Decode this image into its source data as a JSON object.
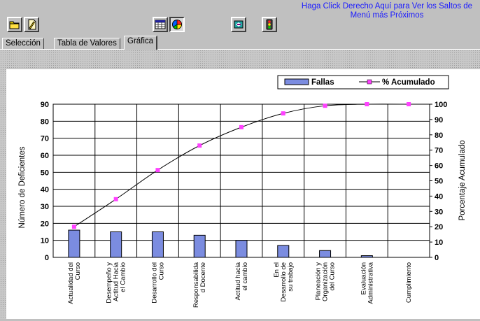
{
  "toolbar": {
    "buttons": [
      {
        "icon": "open-folder-icon"
      },
      {
        "icon": "document-edit-icon"
      },
      {
        "icon": "table-view-icon"
      },
      {
        "icon": "pie-chart-icon"
      },
      {
        "icon": "export-icon"
      },
      {
        "icon": "traffic-light-icon"
      }
    ],
    "help_link": "Haga Click Derecho Aquí para Ver los Saltos de Menú más Próximos",
    "help_color": "#1a1aff"
  },
  "tabs": [
    {
      "label": "Selección",
      "active": false
    },
    {
      "label": "Tabla de Valores",
      "active": false
    },
    {
      "label": "Gráfica",
      "active": true
    }
  ],
  "legend": {
    "bars": "Fallas",
    "line": "% Acumulado"
  },
  "chart_data": {
    "type": "bar",
    "categories": [
      "Actualidad del Curso",
      "Desempeño y Actitud Hacia el Cambio",
      "Desarrollo del Curso",
      "Responsabilida d Docente",
      "Actitud hacia el cambio",
      "En el Desarrollo de su trabajo",
      "Planeación y Organización del Curso",
      "Evaluación Administrativa",
      "Cumplimiento"
    ],
    "series": [
      {
        "name": "Fallas",
        "axis": "left",
        "type": "bar",
        "color": "#7b8ce0",
        "values": [
          16,
          15,
          15,
          13,
          10,
          7,
          4,
          1,
          0
        ]
      },
      {
        "name": "% Acumulado",
        "axis": "right",
        "type": "line",
        "color": "#ff40ff",
        "values": [
          20,
          38,
          57,
          73,
          85,
          94,
          99,
          100,
          100
        ]
      }
    ],
    "ylabel": "Número de Deficientes",
    "y2label": "Porcentaje Acumulado",
    "ylim": [
      0,
      90
    ],
    "y2lim": [
      0,
      100
    ],
    "yticks": [
      0,
      10,
      20,
      30,
      40,
      50,
      60,
      70,
      80,
      90
    ],
    "y2ticks": [
      0,
      10,
      20,
      30,
      40,
      50,
      60,
      70,
      80,
      90,
      100
    ],
    "grid": true,
    "legend_position": "top-right"
  }
}
